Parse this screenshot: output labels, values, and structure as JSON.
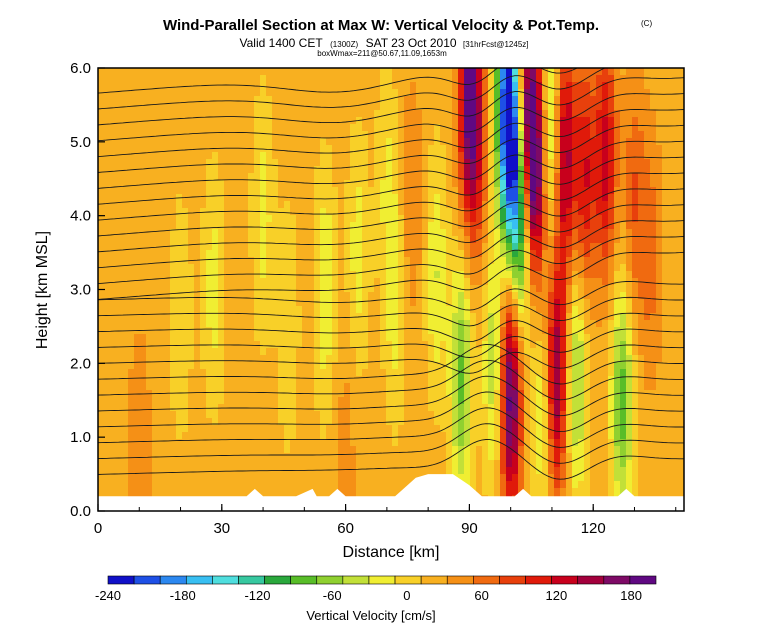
{
  "chart_data": {
    "type": "heatmap",
    "title": "Wind-Parallel Section at Max W: Vertical Velocity & Pot.Temp.",
    "title_mark": "(C)",
    "subtitle_main": "Valid 1400 CET",
    "subtitle_zulu": "(1300Z)",
    "subtitle_date": "SAT 23 Oct 2010",
    "subtitle_forecast": "[31hrFcst@1245z]",
    "subtitle_box": "boxWmax=211@50.67,11.09,1653m",
    "xlabel": "Distance [km]",
    "ylabel": "Height [km MSL]",
    "xlim": [
      0,
      142
    ],
    "ylim": [
      0,
      6
    ],
    "x_ticks": [
      "0",
      "30",
      "60",
      "90",
      "120"
    ],
    "y_ticks": [
      "0.0",
      "1.0",
      "2.0",
      "3.0",
      "4.0",
      "5.0",
      "6.0"
    ],
    "colorbar": {
      "label": "Vertical Velocity [cm/s]",
      "ticks": [
        "-240",
        "-180",
        "-120",
        "-60",
        "0",
        "60",
        "120",
        "180"
      ],
      "range": [
        -240,
        200
      ],
      "step": 20,
      "colors": [
        "#1010c8",
        "#1e50e6",
        "#2c88f0",
        "#38bff2",
        "#4fdede",
        "#37c8a0",
        "#2aa83c",
        "#58bd28",
        "#8fd030",
        "#c2e038",
        "#f0ee32",
        "#f8d028",
        "#f8b020",
        "#f59016",
        "#f06a10",
        "#e8400c",
        "#e01a0a",
        "#c8001c",
        "#a3003c",
        "#7e0a66",
        "#600882"
      ]
    },
    "terrain": [
      [
        0,
        0.2
      ],
      [
        20,
        0.2
      ],
      [
        36,
        0.2
      ],
      [
        38,
        0.3
      ],
      [
        40,
        0.2
      ],
      [
        48,
        0.2
      ],
      [
        52,
        0.3
      ],
      [
        53,
        0.2
      ],
      [
        56,
        0.2
      ],
      [
        58,
        0.3
      ],
      [
        60,
        0.2
      ],
      [
        72,
        0.2
      ],
      [
        74,
        0.3
      ],
      [
        77,
        0.45
      ],
      [
        80,
        0.5
      ],
      [
        86,
        0.5
      ],
      [
        90,
        0.35
      ],
      [
        93,
        0.2
      ],
      [
        101,
        0.2
      ],
      [
        103,
        0.3
      ],
      [
        105,
        0.2
      ],
      [
        126,
        0.2
      ],
      [
        128,
        0.3
      ],
      [
        130,
        0.2
      ],
      [
        142,
        0.2
      ]
    ],
    "w_field": [
      {
        "x": 20,
        "z": 2.6,
        "w": -30
      },
      {
        "x": 28,
        "z": 3.0,
        "w": -40
      },
      {
        "x": 40,
        "z": 4.0,
        "w": -40
      },
      {
        "x": 46,
        "z": 2.5,
        "w": -30
      },
      {
        "x": 55,
        "z": 3.0,
        "w": -50
      },
      {
        "x": 63,
        "z": 3.5,
        "w": -40
      },
      {
        "x": 70,
        "z": 4.5,
        "w": -30
      },
      {
        "x": 72,
        "z": 2.8,
        "w": -40
      },
      {
        "x": 76,
        "z": 4.2,
        "w": 30
      },
      {
        "x": 82,
        "z": 3.2,
        "w": -50
      },
      {
        "x": 88,
        "z": 1.8,
        "w": -95
      },
      {
        "x": 90,
        "z": 5.6,
        "w": 160
      },
      {
        "x": 92,
        "z": 4.8,
        "w": 50
      },
      {
        "x": 96,
        "z": 2.0,
        "w": -70
      },
      {
        "x": 100,
        "z": 1.6,
        "w": 170
      },
      {
        "x": 99,
        "z": 5.5,
        "w": -210
      },
      {
        "x": 101,
        "z": 4.6,
        "w": -150
      },
      {
        "x": 103,
        "z": 3.8,
        "w": -100
      },
      {
        "x": 104,
        "z": 5.3,
        "w": 150
      },
      {
        "x": 106,
        "z": 4.5,
        "w": 140
      },
      {
        "x": 108,
        "z": 1.4,
        "w": -60
      },
      {
        "x": 110,
        "z": 5.0,
        "w": -80
      },
      {
        "x": 111,
        "z": 1.8,
        "w": 140
      },
      {
        "x": 113,
        "z": 4.8,
        "w": 130
      },
      {
        "x": 116,
        "z": 1.8,
        "w": -80
      },
      {
        "x": 118,
        "z": 4.5,
        "w": 90
      },
      {
        "x": 123,
        "z": 4.8,
        "w": 100
      },
      {
        "x": 127,
        "z": 1.5,
        "w": -100
      },
      {
        "x": 130,
        "z": 4.2,
        "w": 50
      },
      {
        "x": 134,
        "z": 3.5,
        "w": 40
      },
      {
        "x": 10,
        "z": 0.8,
        "w": 30
      },
      {
        "x": 60,
        "z": 0.8,
        "w": 20
      }
    ]
  }
}
